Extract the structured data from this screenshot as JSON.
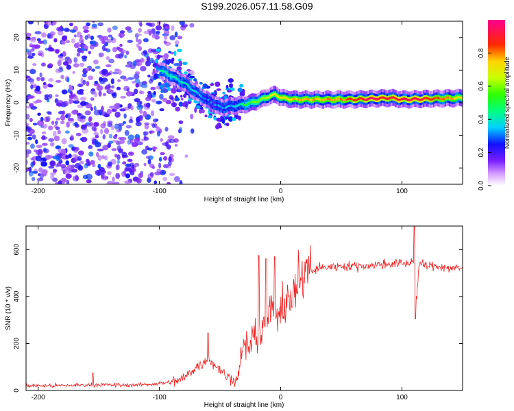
{
  "title": "S199.2026.057.11.58.G09",
  "colors": {
    "snr_line": "#ee1c1c",
    "axis": "#000000",
    "background": "#ffffff"
  },
  "chart_data": [
    {
      "type": "heatmap",
      "name": "spectrogram",
      "xlabel": "Height of straight line (km)",
      "ylabel": "Frequency (Hz)",
      "xlim": [
        -210,
        150
      ],
      "ylim": [
        -25,
        25
      ],
      "xticks": [
        -200,
        -100,
        0,
        100
      ],
      "yticks": [
        -20,
        -10,
        0,
        10,
        20
      ],
      "colorbar": {
        "label": "Normalized spectral amplitude",
        "range": [
          0.0,
          1.0
        ],
        "ticks": [
          0.0,
          0.2,
          0.4,
          0.6,
          0.8
        ]
      },
      "ridge": {
        "description": "dominant frequency trace",
        "points": [
          [
            -100,
            10
          ],
          [
            -90,
            8
          ],
          [
            -80,
            6
          ],
          [
            -70,
            3
          ],
          [
            -60,
            0.5
          ],
          [
            -50,
            -1.5
          ],
          [
            -40,
            -1
          ],
          [
            -30,
            -0.5
          ],
          [
            -20,
            0.5
          ],
          [
            -10,
            2
          ],
          [
            -5,
            2.5
          ],
          [
            0,
            1.5
          ],
          [
            10,
            1
          ],
          [
            30,
            1
          ],
          [
            60,
            1
          ],
          [
            90,
            1.5
          ],
          [
            100,
            1
          ],
          [
            120,
            1.2
          ],
          [
            150,
            1.5
          ]
        ],
        "amplitude": [
          [
            -100,
            0.45
          ],
          [
            -80,
            0.4
          ],
          [
            -60,
            0.3
          ],
          [
            -40,
            0.35
          ],
          [
            -20,
            0.6
          ],
          [
            0,
            0.75
          ],
          [
            20,
            0.75
          ],
          [
            50,
            0.8
          ],
          [
            75,
            0.95
          ],
          [
            90,
            0.9
          ],
          [
            110,
            0.95
          ],
          [
            150,
            0.7
          ]
        ]
      },
      "noise_region": {
        "x_range": [
          -210,
          -100
        ],
        "amplitude_range": [
          0.1,
          0.3
        ]
      }
    },
    {
      "type": "line",
      "name": "snr",
      "xlabel": "Height of straight line (km)",
      "ylabel": "SNR (10 * v/v)",
      "xlim": [
        -210,
        150
      ],
      "ylim": [
        0,
        700
      ],
      "xticks": [
        -200,
        -100,
        0,
        100
      ],
      "yticks": [
        0,
        200,
        400,
        600
      ],
      "series": [
        {
          "name": "SNR",
          "x": [
            -210,
            -190,
            -170,
            -150,
            -130,
            -110,
            -100,
            -90,
            -80,
            -70,
            -65,
            -60,
            -55,
            -50,
            -45,
            -40,
            -36,
            -34,
            -30,
            -20,
            -10,
            0,
            10,
            20,
            30,
            50,
            70,
            90,
            105,
            110,
            112,
            114,
            120,
            130,
            140,
            150
          ],
          "values": [
            20,
            20,
            22,
            25,
            22,
            25,
            30,
            35,
            50,
            100,
            110,
            140,
            110,
            90,
            60,
            50,
            40,
            100,
            180,
            240,
            300,
            350,
            400,
            480,
            520,
            530,
            530,
            540,
            540,
            560,
            370,
            540,
            530,
            530,
            520,
            520
          ],
          "spikes": [
            [
              -155,
              75
            ],
            [
              -60,
              245
            ],
            [
              -18,
              575
            ],
            [
              -12,
              560
            ],
            [
              -5,
              570
            ],
            [
              110,
              700
            ],
            [
              111,
              305
            ]
          ]
        }
      ]
    }
  ]
}
